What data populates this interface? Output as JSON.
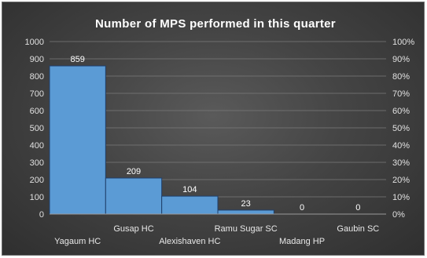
{
  "chart_data": {
    "type": "bar",
    "title": "Number of MPS performed in this quarter",
    "categories": [
      "Yagaum HC",
      "Gusap HC",
      "Alexishaven HC",
      "Ramu Sugar SC",
      "Madang HP",
      "Gaubin SC"
    ],
    "values": [
      859,
      209,
      104,
      23,
      0,
      0
    ],
    "data_labels": [
      "859",
      "209",
      "104",
      "23",
      "0",
      "0"
    ],
    "ylim": [
      0,
      1000
    ],
    "y_ticks": [
      "0",
      "100",
      "200",
      "300",
      "400",
      "500",
      "600",
      "700",
      "800",
      "900",
      "1000"
    ],
    "y2lim": [
      0,
      1
    ],
    "y2_ticks": [
      "0%",
      "10%",
      "20%",
      "30%",
      "40%",
      "50%",
      "60%",
      "70%",
      "80%",
      "90%",
      "100%"
    ],
    "grid": true,
    "legend": "none",
    "colors": {
      "bar": "#5b9bd5",
      "bar_edge": "#1f3f6b",
      "background": "#444444"
    }
  }
}
